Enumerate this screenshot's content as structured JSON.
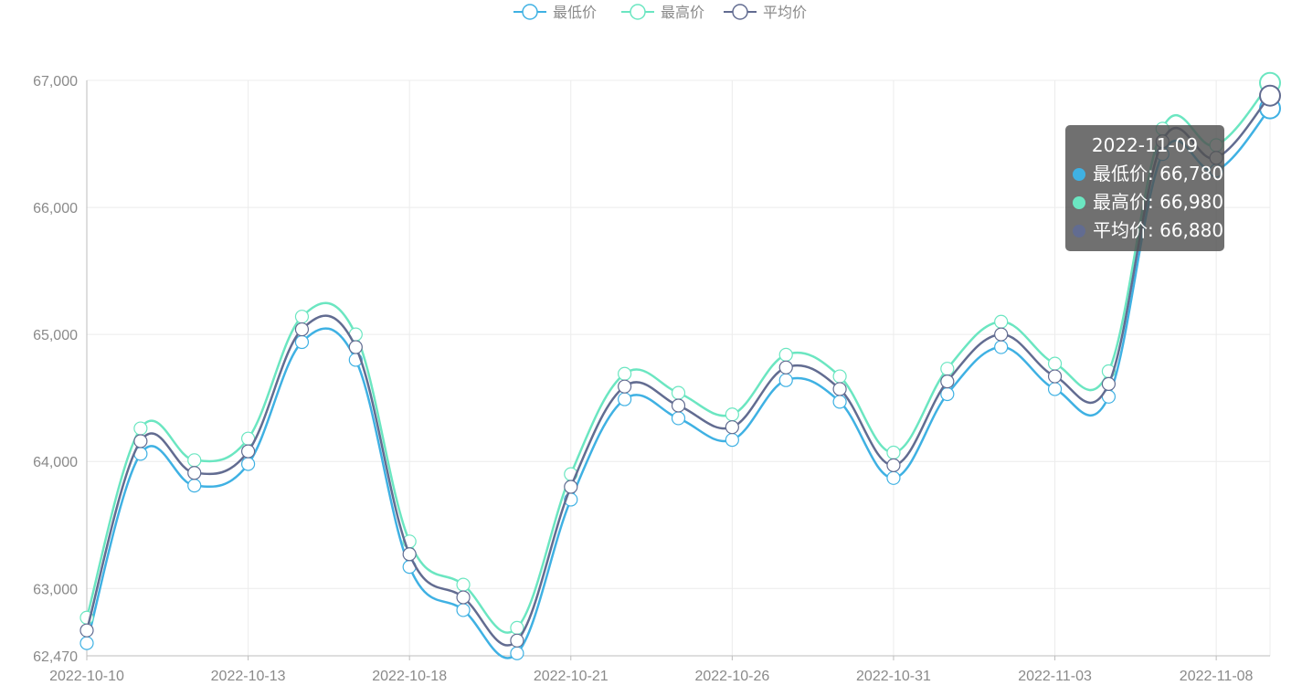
{
  "chart_data": {
    "type": "line",
    "smooth": true,
    "title": "",
    "xlabel": "",
    "ylabel": "",
    "ylim": [
      62470,
      67000
    ],
    "yticks": [
      "67,000",
      "66,000",
      "65,000",
      "64,000",
      "63,000",
      "62,470"
    ],
    "ytick_values": [
      67000,
      66000,
      65000,
      64000,
      63000,
      62470
    ],
    "xtick_labels": [
      "2022-10-10",
      "2022-10-13",
      "2022-10-18",
      "2022-10-21",
      "2022-10-26",
      "2022-10-31",
      "2022-11-03",
      "2022-11-08"
    ],
    "xtick_index": [
      0,
      3,
      6,
      9,
      12,
      15,
      18,
      21
    ],
    "grid": true,
    "legend_position": "top-center",
    "x": [
      "2022-10-10",
      "2022-10-11",
      "2022-10-12",
      "2022-10-13",
      "2022-10-14",
      "2022-10-17",
      "2022-10-18",
      "2022-10-19",
      "2022-10-20",
      "2022-10-21",
      "2022-10-24",
      "2022-10-25",
      "2022-10-26",
      "2022-10-27",
      "2022-10-28",
      "2022-10-31",
      "2022-11-01",
      "2022-11-02",
      "2022-11-03",
      "2022-11-04",
      "2022-11-07",
      "2022-11-08",
      "2022-11-09"
    ],
    "series": [
      {
        "name": "最低价",
        "color": "#3fb1e3",
        "values": [
          62570,
          64060,
          63810,
          63980,
          64940,
          64800,
          63170,
          62830,
          62490,
          63700,
          64490,
          64340,
          64170,
          64640,
          64470,
          63870,
          64530,
          64900,
          64570,
          64510,
          66420,
          66290,
          66780
        ]
      },
      {
        "name": "最高价",
        "color": "#6be6c1",
        "values": [
          62770,
          64260,
          64010,
          64180,
          65140,
          65000,
          63370,
          63030,
          62690,
          63900,
          64690,
          64540,
          64370,
          64840,
          64670,
          64070,
          64730,
          65100,
          64770,
          64710,
          66620,
          66490,
          66980
        ]
      },
      {
        "name": "平均价",
        "color": "#626c91",
        "values": [
          62670,
          64160,
          63910,
          64080,
          65040,
          64900,
          63270,
          62930,
          62590,
          63800,
          64590,
          64440,
          64270,
          64740,
          64570,
          63970,
          64630,
          65000,
          64670,
          64610,
          66520,
          66390,
          66880
        ]
      }
    ],
    "tooltip": {
      "title": "2022-11-09",
      "rows": [
        "最低价: 66,780",
        "最高价: 66,980",
        "平均价: 66,880"
      ],
      "colors": [
        "#3fb1e3",
        "#6be6c1",
        "#626c91"
      ]
    }
  }
}
